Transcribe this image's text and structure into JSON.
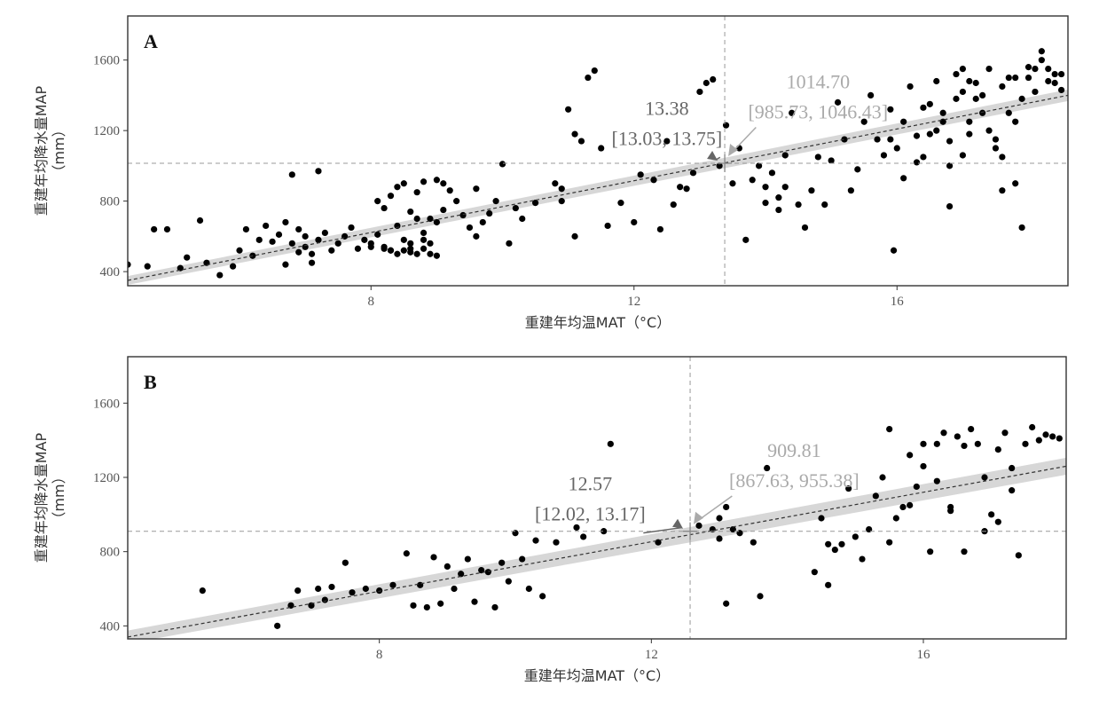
{
  "colors": {
    "points": "#000000",
    "fit": "#333333",
    "ci_band": "#d0d0d0",
    "guide": "#999999",
    "annot_dark": "#666666",
    "annot_light": "#aaaaaa"
  },
  "chart_data": [
    {
      "type": "scatter",
      "panel_label": "A",
      "xlabel": "重建年均温MAT（°C）",
      "ylabel": "重建年均降水量MAP",
      "ylabel2": "（mm）",
      "xlim": [
        4.3,
        18.6
      ],
      "ylim": [
        320,
        1850
      ],
      "xticks": [
        8,
        12,
        16
      ],
      "yticks": [
        400,
        800,
        1200,
        1600
      ],
      "fit": {
        "x0": 4.3,
        "y0": 350,
        "x1": 18.6,
        "y1": 1400,
        "band_halfwidth": 25
      },
      "mean_x": 13.38,
      "mean_y": 1014.7,
      "annot_x_value": "13.38",
      "annot_x_ci": "[13.03, 13.75]",
      "annot_y_value": "1014.70",
      "annot_y_ci": "[985.73, 1046.43]",
      "annot_x_pos": [
        12.5,
        1290
      ],
      "annot_y_pos": [
        14.8,
        1440
      ],
      "points": [
        [
          4.3,
          440
        ],
        [
          4.6,
          430
        ],
        [
          4.7,
          640
        ],
        [
          4.9,
          640
        ],
        [
          5.1,
          420
        ],
        [
          5.2,
          480
        ],
        [
          5.4,
          690
        ],
        [
          5.5,
          450
        ],
        [
          5.7,
          380
        ],
        [
          5.9,
          430
        ],
        [
          6.0,
          520
        ],
        [
          6.1,
          640
        ],
        [
          6.2,
          490
        ],
        [
          6.3,
          580
        ],
        [
          6.4,
          660
        ],
        [
          6.5,
          570
        ],
        [
          6.6,
          610
        ],
        [
          6.7,
          680
        ],
        [
          6.8,
          560
        ],
        [
          6.9,
          640
        ],
        [
          7.0,
          600
        ],
        [
          7.1,
          450
        ],
        [
          6.7,
          440
        ],
        [
          6.8,
          950
        ],
        [
          7.2,
          970
        ],
        [
          6.9,
          510
        ],
        [
          7.0,
          540
        ],
        [
          7.1,
          500
        ],
        [
          7.2,
          580
        ],
        [
          7.3,
          620
        ],
        [
          7.4,
          520
        ],
        [
          7.5,
          560
        ],
        [
          7.6,
          600
        ],
        [
          7.7,
          650
        ],
        [
          7.8,
          530
        ],
        [
          7.9,
          580
        ],
        [
          8.0,
          560
        ],
        [
          8.1,
          610
        ],
        [
          8.2,
          540
        ],
        [
          8.3,
          520
        ],
        [
          8.4,
          660
        ],
        [
          8.5,
          580
        ],
        [
          8.6,
          530
        ],
        [
          8.7,
          700
        ],
        [
          8.8,
          620
        ],
        [
          8.9,
          560
        ],
        [
          9.0,
          680
        ],
        [
          9.1,
          750
        ],
        [
          9.2,
          860
        ],
        [
          9.3,
          800
        ],
        [
          9.4,
          720
        ],
        [
          9.5,
          650
        ],
        [
          9.6,
          600
        ],
        [
          9.7,
          680
        ],
        [
          9.8,
          730
        ],
        [
          9.9,
          800
        ],
        [
          10.0,
          1010
        ],
        [
          10.1,
          560
        ],
        [
          10.2,
          760
        ],
        [
          10.3,
          700
        ],
        [
          8.1,
          800
        ],
        [
          8.2,
          760
        ],
        [
          8.3,
          830
        ],
        [
          8.4,
          880
        ],
        [
          8.5,
          900
        ],
        [
          8.6,
          740
        ],
        [
          8.7,
          850
        ],
        [
          8.8,
          910
        ],
        [
          8.9,
          700
        ],
        [
          9.0,
          920
        ],
        [
          9.1,
          900
        ],
        [
          8.4,
          500
        ],
        [
          8.5,
          520
        ],
        [
          8.6,
          510
        ],
        [
          8.7,
          500
        ],
        [
          8.8,
          530
        ],
        [
          8.9,
          500
        ],
        [
          9.0,
          490
        ],
        [
          8.0,
          540
        ],
        [
          8.2,
          530
        ],
        [
          8.3,
          520
        ],
        [
          8.6,
          560
        ],
        [
          8.8,
          580
        ],
        [
          10.5,
          790
        ],
        [
          10.8,
          900
        ],
        [
          10.9,
          870
        ],
        [
          11.0,
          1320
        ],
        [
          11.1,
          1180
        ],
        [
          11.2,
          1140
        ],
        [
          11.3,
          1500
        ],
        [
          11.4,
          1540
        ],
        [
          11.5,
          1100
        ],
        [
          11.6,
          660
        ],
        [
          11.1,
          600
        ],
        [
          11.8,
          790
        ],
        [
          12.0,
          680
        ],
        [
          12.1,
          950
        ],
        [
          12.3,
          920
        ],
        [
          12.4,
          640
        ],
        [
          12.5,
          1140
        ],
        [
          12.6,
          780
        ],
        [
          12.7,
          880
        ],
        [
          12.9,
          960
        ],
        [
          13.0,
          1420
        ],
        [
          13.1,
          1470
        ],
        [
          13.2,
          1490
        ],
        [
          13.3,
          1000
        ],
        [
          13.4,
          1230
        ],
        [
          13.5,
          900
        ],
        [
          13.6,
          1100
        ],
        [
          13.7,
          580
        ],
        [
          13.8,
          920
        ],
        [
          13.9,
          1000
        ],
        [
          14.0,
          880
        ],
        [
          14.1,
          960
        ],
        [
          14.2,
          820
        ],
        [
          14.3,
          880
        ],
        [
          14.4,
          1300
        ],
        [
          14.5,
          780
        ],
        [
          14.6,
          650
        ],
        [
          14.7,
          860
        ],
        [
          14.8,
          1050
        ],
        [
          14.9,
          780
        ],
        [
          15.0,
          1030
        ],
        [
          15.1,
          1360
        ],
        [
          15.2,
          1150
        ],
        [
          15.3,
          860
        ],
        [
          15.4,
          980
        ],
        [
          15.5,
          1250
        ],
        [
          15.6,
          1400
        ],
        [
          15.7,
          1150
        ],
        [
          15.8,
          1060
        ],
        [
          15.9,
          1320
        ],
        [
          15.95,
          520
        ],
        [
          16.0,
          1100
        ],
        [
          16.1,
          1250
        ],
        [
          16.2,
          1450
        ],
        [
          16.3,
          1170
        ],
        [
          16.4,
          1050
        ],
        [
          16.5,
          1350
        ],
        [
          16.6,
          1480
        ],
        [
          16.7,
          1300
        ],
        [
          16.8,
          1000
        ],
        [
          16.9,
          1380
        ],
        [
          17.0,
          1420
        ],
        [
          17.1,
          1250
        ],
        [
          17.2,
          1470
        ],
        [
          17.3,
          1400
        ],
        [
          17.4,
          1550
        ],
        [
          17.5,
          1100
        ],
        [
          17.6,
          1450
        ],
        [
          17.7,
          1300
        ],
        [
          17.8,
          1500
        ],
        [
          17.9,
          1380
        ],
        [
          18.0,
          1560
        ],
        [
          18.1,
          1420
        ],
        [
          18.2,
          1600
        ],
        [
          18.3,
          1480
        ],
        [
          18.4,
          1520
        ],
        [
          18.5,
          1430
        ],
        [
          16.9,
          1520
        ],
        [
          17.0,
          1550
        ],
        [
          17.1,
          1480
        ],
        [
          17.2,
          1380
        ],
        [
          17.3,
          1300
        ],
        [
          17.4,
          1200
        ],
        [
          17.5,
          1150
        ],
        [
          17.6,
          1050
        ],
        [
          17.7,
          1500
        ],
        [
          17.8,
          1250
        ],
        [
          17.9,
          650
        ],
        [
          18.0,
          1500
        ],
        [
          18.1,
          1550
        ],
        [
          18.2,
          1650
        ],
        [
          18.3,
          1550
        ],
        [
          18.4,
          1470
        ],
        [
          18.5,
          1520
        ],
        [
          17.0,
          1060
        ],
        [
          17.1,
          1180
        ],
        [
          16.6,
          1200
        ],
        [
          16.7,
          1250
        ],
        [
          16.8,
          1140
        ],
        [
          16.4,
          1330
        ],
        [
          16.5,
          1180
        ],
        [
          15.9,
          1150
        ],
        [
          16.1,
          930
        ],
        [
          16.3,
          1020
        ],
        [
          17.6,
          860
        ],
        [
          17.8,
          900
        ],
        [
          16.8,
          770
        ],
        [
          14.3,
          1060
        ],
        [
          14.0,
          790
        ],
        [
          14.2,
          750
        ],
        [
          12.8,
          870
        ],
        [
          10.9,
          800
        ],
        [
          9.6,
          870
        ]
      ]
    },
    {
      "type": "scatter",
      "panel_label": "B",
      "xlabel": "重建年均温MAT（°C）",
      "ylabel": "重建年均降水量MAP",
      "ylabel2": "（mm）",
      "xlim": [
        4.3,
        18.1
      ],
      "ylim": [
        330,
        1850
      ],
      "xticks": [
        8,
        12,
        16
      ],
      "yticks": [
        400,
        800,
        1200,
        1600
      ],
      "fit": {
        "x0": 4.3,
        "y0": 340,
        "x1": 18.1,
        "y1": 1260,
        "band_halfwidth": 35
      },
      "mean_x": 12.57,
      "mean_y": 909.81,
      "annot_x_value": "12.57",
      "annot_x_ci": "[12.02, 13.17]",
      "annot_y_value": "909.81",
      "annot_y_ci": "[867.63, 955.38]",
      "annot_x_pos": [
        11.1,
        1130
      ],
      "annot_y_pos": [
        14.1,
        1310
      ],
      "points": [
        [
          5.4,
          590
        ],
        [
          6.5,
          400
        ],
        [
          6.7,
          510
        ],
        [
          6.8,
          590
        ],
        [
          7.0,
          510
        ],
        [
          7.1,
          600
        ],
        [
          7.2,
          540
        ],
        [
          7.3,
          610
        ],
        [
          7.5,
          740
        ],
        [
          7.6,
          580
        ],
        [
          7.8,
          600
        ],
        [
          8.0,
          590
        ],
        [
          8.2,
          620
        ],
        [
          8.4,
          790
        ],
        [
          8.5,
          510
        ],
        [
          8.6,
          620
        ],
        [
          8.7,
          500
        ],
        [
          8.8,
          770
        ],
        [
          8.9,
          520
        ],
        [
          9.0,
          720
        ],
        [
          9.1,
          600
        ],
        [
          9.2,
          680
        ],
        [
          9.3,
          760
        ],
        [
          9.4,
          530
        ],
        [
          9.5,
          700
        ],
        [
          9.6,
          690
        ],
        [
          9.7,
          500
        ],
        [
          9.8,
          740
        ],
        [
          9.9,
          640
        ],
        [
          10.0,
          900
        ],
        [
          10.1,
          760
        ],
        [
          10.2,
          600
        ],
        [
          10.3,
          860
        ],
        [
          10.4,
          560
        ],
        [
          10.6,
          850
        ],
        [
          10.9,
          930
        ],
        [
          11.3,
          910
        ],
        [
          11.4,
          1380
        ],
        [
          12.1,
          850
        ],
        [
          12.9,
          920
        ],
        [
          13.0,
          980
        ],
        [
          13.1,
          1040
        ],
        [
          13.2,
          920
        ],
        [
          13.3,
          900
        ],
        [
          13.5,
          850
        ],
        [
          13.7,
          1250
        ],
        [
          13.1,
          520
        ],
        [
          13.6,
          560
        ],
        [
          14.4,
          690
        ],
        [
          14.5,
          980
        ],
        [
          14.6,
          840
        ],
        [
          14.7,
          810
        ],
        [
          14.8,
          840
        ],
        [
          14.9,
          1140
        ],
        [
          15.0,
          880
        ],
        [
          15.1,
          760
        ],
        [
          15.2,
          920
        ],
        [
          15.3,
          1100
        ],
        [
          15.4,
          1200
        ],
        [
          15.5,
          1460
        ],
        [
          15.6,
          980
        ],
        [
          15.7,
          1040
        ],
        [
          15.8,
          1320
        ],
        [
          15.9,
          1150
        ],
        [
          16.0,
          1380
        ],
        [
          16.1,
          800
        ],
        [
          16.2,
          1180
        ],
        [
          16.3,
          1440
        ],
        [
          16.4,
          1040
        ],
        [
          16.5,
          1420
        ],
        [
          16.6,
          800
        ],
        [
          16.7,
          1460
        ],
        [
          16.8,
          1380
        ],
        [
          16.9,
          1200
        ],
        [
          17.0,
          1000
        ],
        [
          17.1,
          1350
        ],
        [
          17.2,
          1440
        ],
        [
          17.3,
          1250
        ],
        [
          17.4,
          780
        ],
        [
          17.5,
          1380
        ],
        [
          17.6,
          1470
        ],
        [
          17.7,
          1400
        ],
        [
          17.8,
          1430
        ],
        [
          17.9,
          1420
        ],
        [
          18.0,
          1410
        ],
        [
          16.0,
          1260
        ],
        [
          16.2,
          1380
        ],
        [
          16.4,
          1020
        ],
        [
          16.6,
          1370
        ],
        [
          16.9,
          910
        ],
        [
          17.1,
          960
        ],
        [
          17.3,
          1130
        ],
        [
          15.8,
          1050
        ],
        [
          15.5,
          850
        ],
        [
          14.6,
          620
        ],
        [
          12.7,
          940
        ],
        [
          13.0,
          870
        ],
        [
          11.0,
          880
        ]
      ]
    }
  ]
}
